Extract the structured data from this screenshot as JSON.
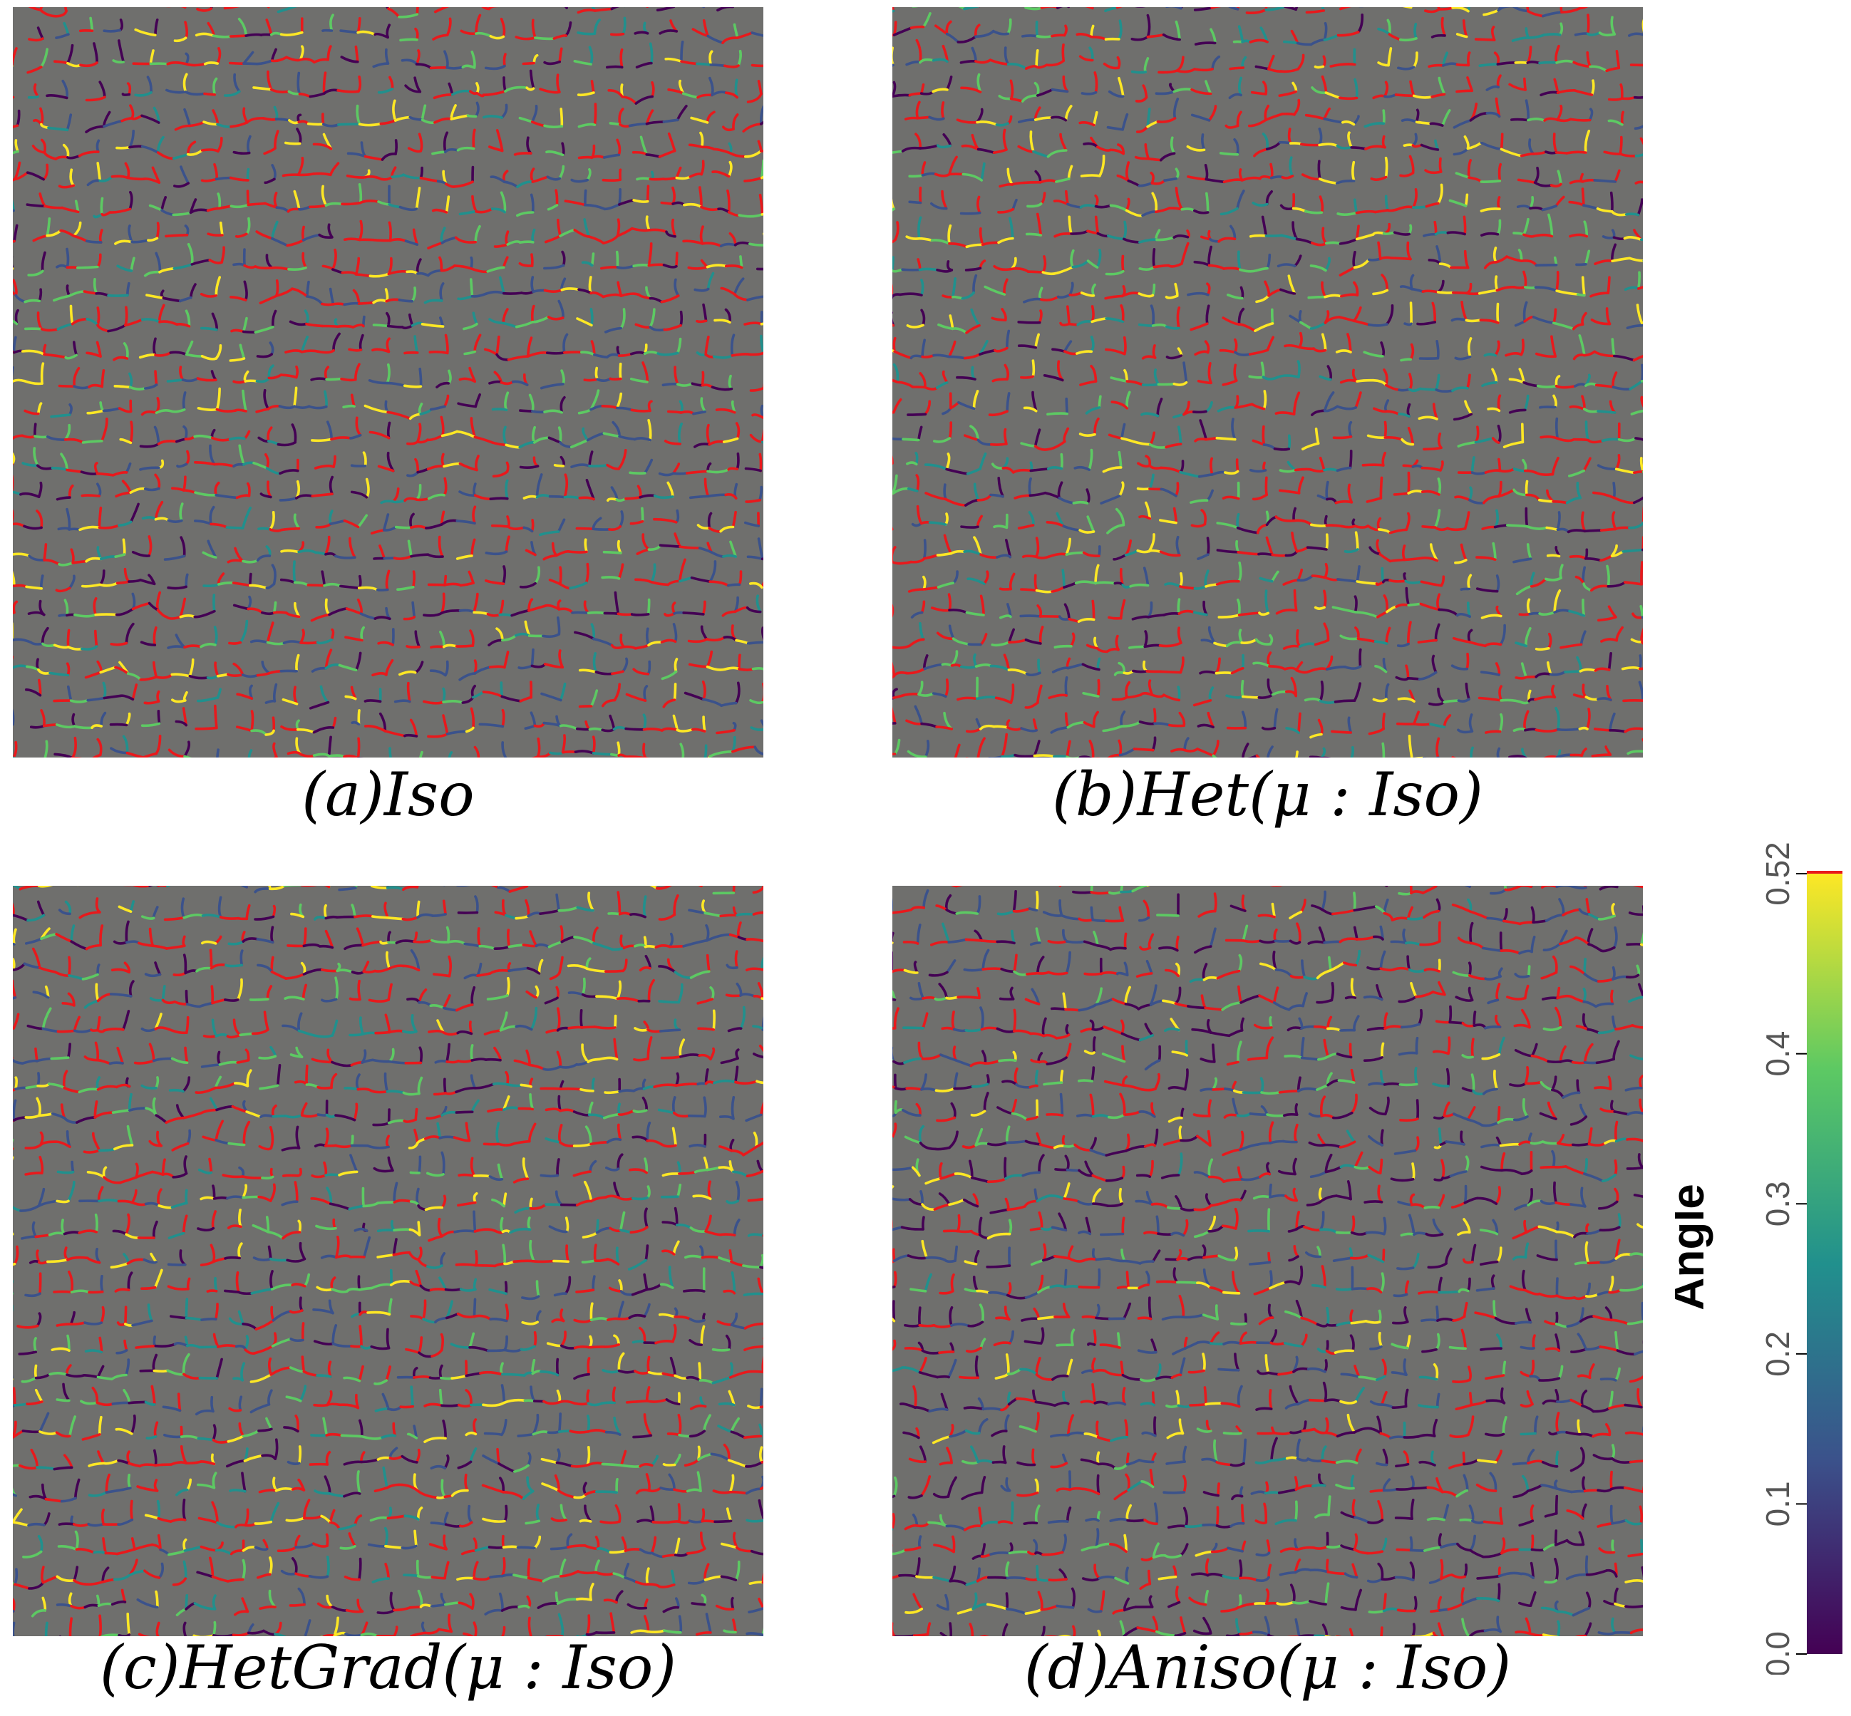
{
  "panels": [
    {
      "id": "a",
      "caption": "(a)Iso"
    },
    {
      "id": "b",
      "caption": "(b)Het(μ : Iso)"
    },
    {
      "id": "c",
      "caption": "(c)HetGrad(μ : Iso)"
    },
    {
      "id": "d",
      "caption": "(d)Aniso(μ : Iso)"
    }
  ],
  "colorbar": {
    "title": "Angle",
    "ticks": [
      "0.0",
      "0.1",
      "0.2",
      "0.3",
      "0.4",
      "0.52"
    ],
    "colormap": "viridis",
    "stops": [
      "#440154",
      "#3b528b",
      "#21908d",
      "#5dc963",
      "#fde725"
    ],
    "above_max_color": "#e8191c"
  },
  "colors": {
    "background": "#6f6f6d",
    "high_angle_boundary": "#e8191c"
  }
}
